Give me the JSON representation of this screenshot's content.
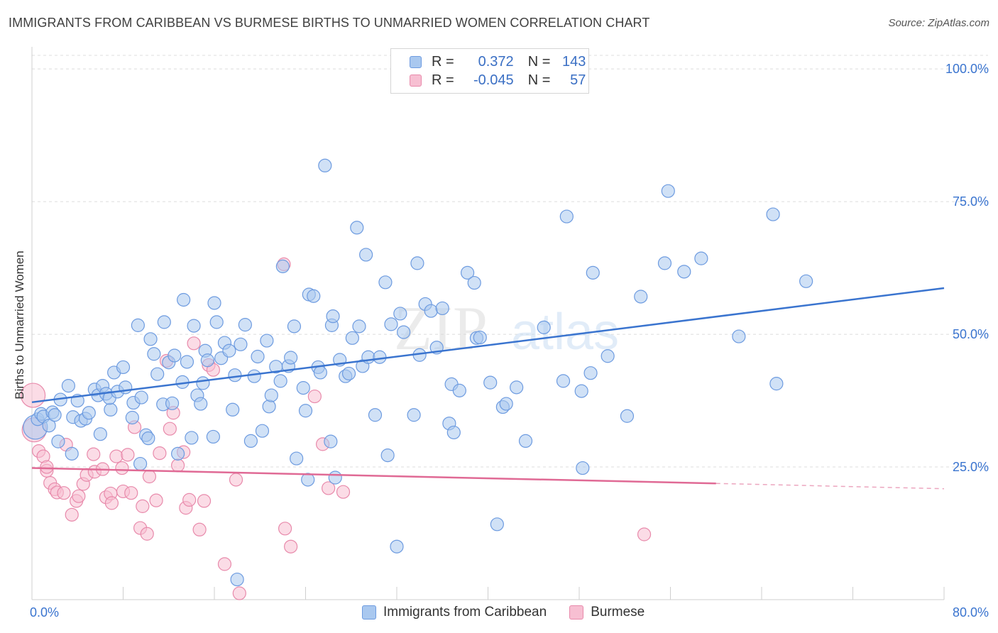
{
  "title": "IMMIGRANTS FROM CARIBBEAN VS BURMESE BIRTHS TO UNMARRIED WOMEN CORRELATION CHART",
  "source": "Source: ZipAtlas.com",
  "watermark": {
    "zip": "ZIP",
    "atlas": "atlas"
  },
  "legend": {
    "rows": [
      {
        "r_label": "R =",
        "r_value": "0.372",
        "n_label": "N =",
        "n_value": "143",
        "color": "#a9c8ef",
        "stroke": "#6d9be0"
      },
      {
        "r_label": "R =",
        "r_value": "-0.045",
        "n_label": "N =",
        "n_value": "57",
        "color": "#f7bfd2",
        "stroke": "#e88aab"
      }
    ]
  },
  "bottom_legend": [
    "Immigrants from Caribbean",
    "Burmese"
  ],
  "chart_data": {
    "type": "scatter",
    "title": "IMMIGRANTS FROM CARIBBEAN VS BURMESE BIRTHS TO UNMARRIED WOMEN CORRELATION CHART",
    "xlabel": "",
    "ylabel": "Births to Unmarried Women",
    "xlim": [
      0,
      80
    ],
    "ylim": [
      0,
      100
    ],
    "x_tick_labels": [
      "0.0%",
      "80.0%"
    ],
    "y_tick_labels": [
      "25.0%",
      "50.0%",
      "75.0%",
      "100.0%"
    ],
    "y_ticks": [
      25,
      50,
      75,
      100
    ],
    "grid": "horizontal dashed",
    "legend_position": "top-center",
    "series": [
      {
        "name": "Immigrants from Caribbean",
        "color": "#6d9be0",
        "fill": "#a9c8ef",
        "trend": {
          "x": [
            0,
            80
          ],
          "y": [
            37.2,
            58.7
          ],
          "color": "#3a74cf"
        },
        "points": [
          [
            0.3,
            32.5
          ],
          [
            0.5,
            34.0
          ],
          [
            0.8,
            35.0
          ],
          [
            1.0,
            34.5
          ],
          [
            1.5,
            32.8
          ],
          [
            1.8,
            35.3
          ],
          [
            2.0,
            34.8
          ],
          [
            2.5,
            37.7
          ],
          [
            3.2,
            40.3
          ],
          [
            3.6,
            34.4
          ],
          [
            4.0,
            37.5
          ],
          [
            4.3,
            33.7
          ],
          [
            4.7,
            34.1
          ],
          [
            5.0,
            35.2
          ],
          [
            5.5,
            39.6
          ],
          [
            5.8,
            38.5
          ],
          [
            6.2,
            40.3
          ],
          [
            6.5,
            38.8
          ],
          [
            6.9,
            35.8
          ],
          [
            6.8,
            38.0
          ],
          [
            7.2,
            42.8
          ],
          [
            7.5,
            39.2
          ],
          [
            8.0,
            43.8
          ],
          [
            8.2,
            40.0
          ],
          [
            8.8,
            34.3
          ],
          [
            8.9,
            37.1
          ],
          [
            9.3,
            51.7
          ],
          [
            9.6,
            38.1
          ],
          [
            10.0,
            31.0
          ],
          [
            10.2,
            30.4
          ],
          [
            10.4,
            49.1
          ],
          [
            10.7,
            46.3
          ],
          [
            11.0,
            42.5
          ],
          [
            11.5,
            36.8
          ],
          [
            11.6,
            52.3
          ],
          [
            12.0,
            44.7
          ],
          [
            12.3,
            37.0
          ],
          [
            12.5,
            46.0
          ],
          [
            13.2,
            41.0
          ],
          [
            13.3,
            56.5
          ],
          [
            13.6,
            44.8
          ],
          [
            14.0,
            30.5
          ],
          [
            14.2,
            51.6
          ],
          [
            14.5,
            38.5
          ],
          [
            14.8,
            36.9
          ],
          [
            15.2,
            46.9
          ],
          [
            15.4,
            45.1
          ],
          [
            15.9,
            30.7
          ],
          [
            16.0,
            55.9
          ],
          [
            16.2,
            52.3
          ],
          [
            16.6,
            45.5
          ],
          [
            16.9,
            48.4
          ],
          [
            17.3,
            46.9
          ],
          [
            17.6,
            35.8
          ],
          [
            17.8,
            42.3
          ],
          [
            18.3,
            48.1
          ],
          [
            18.7,
            51.8
          ],
          [
            19.2,
            29.9
          ],
          [
            19.5,
            42.1
          ],
          [
            19.8,
            45.8
          ],
          [
            20.2,
            31.8
          ],
          [
            20.6,
            48.8
          ],
          [
            20.8,
            36.4
          ],
          [
            21.0,
            38.5
          ],
          [
            21.4,
            43.9
          ],
          [
            21.8,
            41.2
          ],
          [
            22.0,
            62.8
          ],
          [
            22.5,
            44.0
          ],
          [
            22.7,
            45.6
          ],
          [
            23.0,
            51.5
          ],
          [
            23.2,
            26.6
          ],
          [
            23.8,
            39.9
          ],
          [
            24.0,
            35.6
          ],
          [
            24.2,
            22.6
          ],
          [
            24.3,
            57.5
          ],
          [
            25.1,
            43.8
          ],
          [
            25.3,
            42.8
          ],
          [
            25.7,
            81.8
          ],
          [
            26.2,
            29.8
          ],
          [
            26.3,
            51.7
          ],
          [
            26.4,
            53.4
          ],
          [
            26.6,
            23.0
          ],
          [
            27.0,
            45.2
          ],
          [
            27.5,
            42.1
          ],
          [
            27.8,
            42.6
          ],
          [
            28.1,
            49.3
          ],
          [
            28.5,
            70.1
          ],
          [
            28.7,
            51.5
          ],
          [
            29.0,
            44.0
          ],
          [
            29.3,
            65.0
          ],
          [
            29.5,
            45.7
          ],
          [
            30.1,
            34.8
          ],
          [
            30.5,
            45.7
          ],
          [
            31.0,
            59.8
          ],
          [
            31.2,
            27.2
          ],
          [
            31.5,
            51.9
          ],
          [
            32.0,
            10.0
          ],
          [
            32.3,
            53.9
          ],
          [
            32.6,
            50.4
          ],
          [
            33.5,
            34.8
          ],
          [
            33.8,
            63.4
          ],
          [
            34.0,
            46.1
          ],
          [
            34.5,
            55.7
          ],
          [
            35.0,
            54.4
          ],
          [
            35.5,
            47.5
          ],
          [
            36.0,
            54.9
          ],
          [
            36.6,
            33.2
          ],
          [
            36.8,
            40.6
          ],
          [
            37.0,
            31.5
          ],
          [
            37.5,
            39.4
          ],
          [
            38.2,
            61.6
          ],
          [
            38.8,
            59.7
          ],
          [
            39.0,
            49.3
          ],
          [
            39.3,
            49.4
          ],
          [
            40.2,
            40.9
          ],
          [
            40.8,
            14.2
          ],
          [
            41.3,
            36.3
          ],
          [
            41.6,
            36.9
          ],
          [
            42.5,
            40.0
          ],
          [
            43.3,
            29.9
          ],
          [
            44.9,
            51.3
          ],
          [
            46.6,
            41.2
          ],
          [
            46.9,
            72.2
          ],
          [
            48.2,
            39.3
          ],
          [
            48.3,
            24.8
          ],
          [
            49.0,
            42.7
          ],
          [
            49.2,
            61.6
          ],
          [
            50.5,
            45.9
          ],
          [
            52.2,
            34.6
          ],
          [
            53.4,
            57.1
          ],
          [
            55.5,
            63.4
          ],
          [
            55.8,
            77.0
          ],
          [
            57.2,
            61.8
          ],
          [
            58.7,
            64.3
          ],
          [
            62.0,
            49.6
          ],
          [
            65.0,
            72.6
          ],
          [
            65.3,
            40.7
          ],
          [
            67.9,
            60.0
          ],
          [
            2.3,
            29.8
          ],
          [
            6.0,
            31.2
          ],
          [
            9.5,
            25.6
          ],
          [
            12.8,
            27.5
          ],
          [
            3.5,
            27.5
          ],
          [
            18.0,
            3.8
          ],
          [
            24.7,
            57.2
          ],
          [
            15.0,
            40.8
          ]
        ]
      },
      {
        "name": "Burmese",
        "color": "#e88aab",
        "fill": "#f7bfd2",
        "trend": {
          "x": [
            0,
            60
          ],
          "y": [
            24.8,
            21.9
          ],
          "color": "#e06a95"
        },
        "trend_dashed": {
          "x": [
            60,
            80
          ],
          "y": [
            21.9,
            20.9
          ]
        },
        "points": [
          [
            0.1,
            38.5
          ],
          [
            0.2,
            32.0
          ],
          [
            0.6,
            28.0
          ],
          [
            1.0,
            27.0
          ],
          [
            1.3,
            24.3
          ],
          [
            1.6,
            22.0
          ],
          [
            2.0,
            20.8
          ],
          [
            2.2,
            20.2
          ],
          [
            2.8,
            20.1
          ],
          [
            3.0,
            29.2
          ],
          [
            3.5,
            16.0
          ],
          [
            3.9,
            18.6
          ],
          [
            4.1,
            19.5
          ],
          [
            4.5,
            21.8
          ],
          [
            4.8,
            23.5
          ],
          [
            5.4,
            27.4
          ],
          [
            5.5,
            24.1
          ],
          [
            6.2,
            24.6
          ],
          [
            6.5,
            19.3
          ],
          [
            6.9,
            20.0
          ],
          [
            7.0,
            18.2
          ],
          [
            7.4,
            27.0
          ],
          [
            7.9,
            24.8
          ],
          [
            8.0,
            20.4
          ],
          [
            8.4,
            27.3
          ],
          [
            8.7,
            20.1
          ],
          [
            9.0,
            32.5
          ],
          [
            9.5,
            13.5
          ],
          [
            9.7,
            17.6
          ],
          [
            10.1,
            12.4
          ],
          [
            10.3,
            23.2
          ],
          [
            10.9,
            18.7
          ],
          [
            11.2,
            27.6
          ],
          [
            11.8,
            45.0
          ],
          [
            12.1,
            32.2
          ],
          [
            12.4,
            35.2
          ],
          [
            12.8,
            25.3
          ],
          [
            13.3,
            27.8
          ],
          [
            13.5,
            17.3
          ],
          [
            13.8,
            18.8
          ],
          [
            14.2,
            48.3
          ],
          [
            14.7,
            13.2
          ],
          [
            15.1,
            18.6
          ],
          [
            15.5,
            44.2
          ],
          [
            15.9,
            43.3
          ],
          [
            16.9,
            6.7
          ],
          [
            17.9,
            22.6
          ],
          [
            18.2,
            1.2
          ],
          [
            22.1,
            63.2
          ],
          [
            22.2,
            13.4
          ],
          [
            22.7,
            10.0
          ],
          [
            24.8,
            38.3
          ],
          [
            25.5,
            29.3
          ],
          [
            26.0,
            21.0
          ],
          [
            27.3,
            20.3
          ],
          [
            53.7,
            12.3
          ],
          [
            1.3,
            25.0
          ]
        ]
      }
    ]
  }
}
